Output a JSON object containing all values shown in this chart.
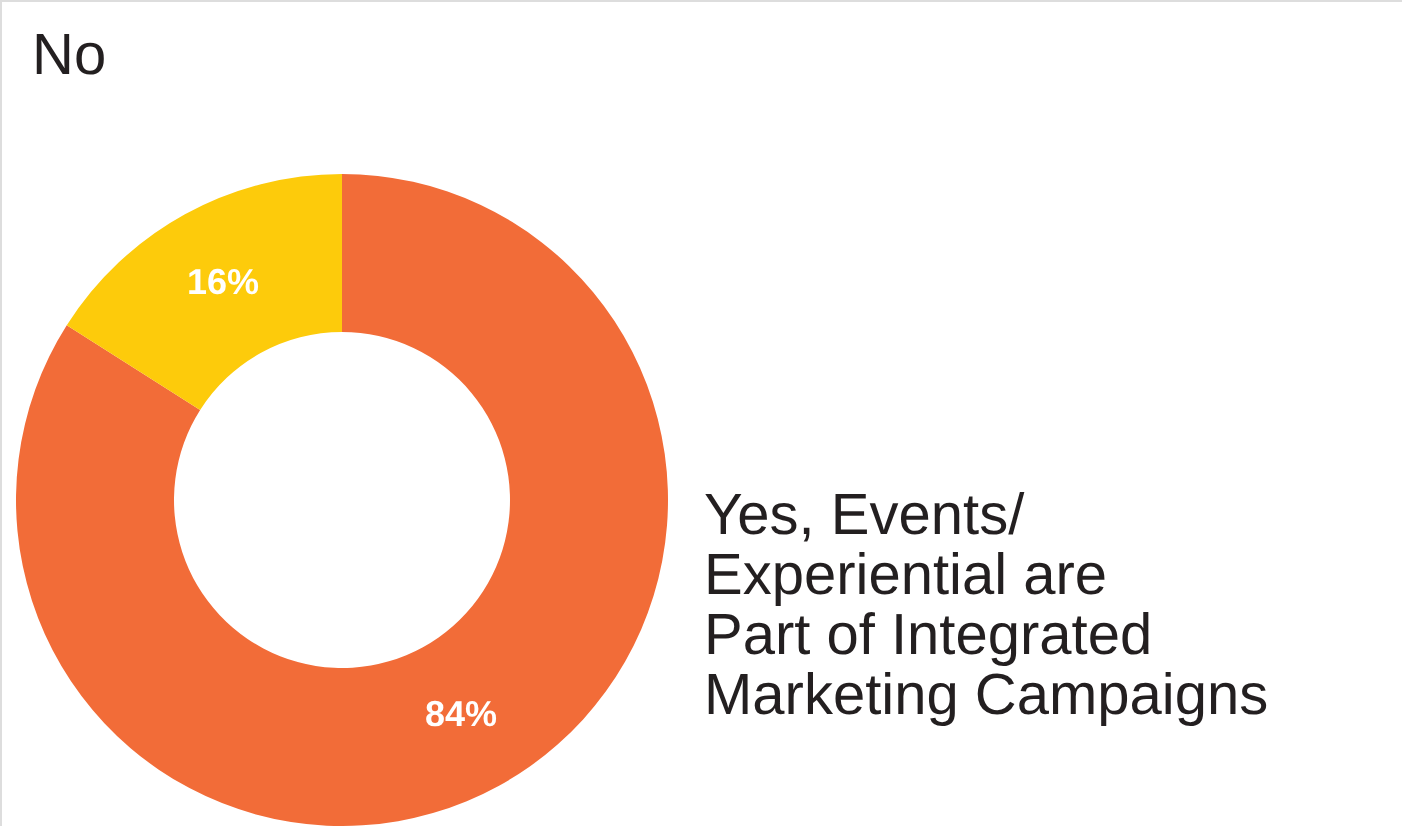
{
  "chart_data": {
    "type": "donut",
    "categories": [
      "Yes, Events/ Experiential are Part of Integrated Marketing Campaigns",
      "No"
    ],
    "values": [
      84,
      16
    ],
    "colors": [
      "#f26c38",
      "#fdcb0b"
    ],
    "value_labels": [
      "84%",
      "16%"
    ]
  }
}
